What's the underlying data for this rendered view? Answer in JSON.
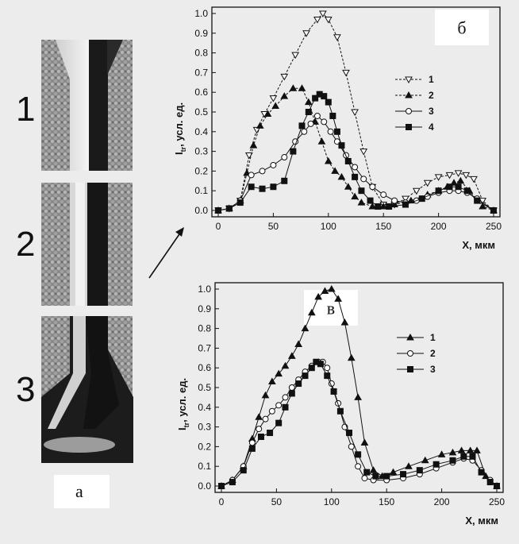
{
  "figure": {
    "left_panel": {
      "rows": [
        "1",
        "2",
        "3"
      ],
      "letter": "а"
    }
  },
  "chart_data": [
    {
      "type": "line",
      "panel_letter": "б",
      "xlabel": "X, мкм",
      "ylabel_main": "I",
      "ylabel_sub": "tr",
      "ylabel_rest": ", усл. ед.",
      "xlim": [
        0,
        250
      ],
      "ylim": [
        0,
        1.0
      ],
      "xticks": [
        "0",
        "50",
        "100",
        "150",
        "200",
        "250"
      ],
      "yticks": [
        "0.0",
        "0.1",
        "0.2",
        "0.3",
        "0.4",
        "0.5",
        "0.6",
        "0.7",
        "0.8",
        "0.9",
        "1.0"
      ],
      "legend_position": "right",
      "series": [
        {
          "name": "1",
          "marker": "triangle-down-open",
          "dash": "dashed",
          "x": [
            0,
            10,
            20,
            28,
            35,
            42,
            50,
            60,
            70,
            80,
            90,
            95,
            100,
            108,
            116,
            124,
            132,
            140,
            150,
            160,
            170,
            180,
            190,
            200,
            210,
            218,
            225,
            232,
            240,
            250
          ],
          "y": [
            0.0,
            0.01,
            0.05,
            0.28,
            0.41,
            0.49,
            0.57,
            0.68,
            0.79,
            0.9,
            0.97,
            1.0,
            0.97,
            0.88,
            0.7,
            0.5,
            0.3,
            0.12,
            0.03,
            0.03,
            0.06,
            0.1,
            0.14,
            0.17,
            0.18,
            0.19,
            0.18,
            0.16,
            0.05,
            0.0
          ]
        },
        {
          "name": "2",
          "marker": "triangle-up-filled",
          "dash": "dashed",
          "x": [
            0,
            10,
            20,
            26,
            32,
            38,
            45,
            52,
            60,
            68,
            76,
            82,
            88,
            94,
            100,
            106,
            112,
            118,
            124,
            130,
            140,
            150,
            160,
            175,
            190,
            200,
            208,
            214,
            220,
            228,
            240,
            250
          ],
          "y": [
            0.0,
            0.01,
            0.05,
            0.19,
            0.33,
            0.43,
            0.49,
            0.53,
            0.58,
            0.62,
            0.62,
            0.55,
            0.45,
            0.35,
            0.25,
            0.2,
            0.17,
            0.12,
            0.07,
            0.04,
            0.02,
            0.02,
            0.03,
            0.05,
            0.08,
            0.1,
            0.12,
            0.14,
            0.15,
            0.1,
            0.02,
            0.0
          ]
        },
        {
          "name": "3",
          "marker": "circle-open",
          "dash": "solid",
          "x": [
            0,
            10,
            20,
            30,
            40,
            50,
            60,
            70,
            78,
            84,
            90,
            96,
            102,
            108,
            116,
            124,
            132,
            140,
            150,
            160,
            170,
            180,
            190,
            200,
            210,
            218,
            226,
            235,
            250
          ],
          "y": [
            0.0,
            0.01,
            0.05,
            0.18,
            0.2,
            0.23,
            0.27,
            0.35,
            0.4,
            0.44,
            0.48,
            0.45,
            0.4,
            0.35,
            0.28,
            0.22,
            0.16,
            0.12,
            0.08,
            0.05,
            0.04,
            0.05,
            0.07,
            0.09,
            0.1,
            0.1,
            0.09,
            0.06,
            0.0
          ]
        },
        {
          "name": "4",
          "marker": "square-filled",
          "dash": "solid",
          "x": [
            0,
            10,
            20,
            30,
            40,
            50,
            60,
            68,
            76,
            82,
            88,
            92,
            96,
            100,
            104,
            108,
            112,
            118,
            124,
            130,
            138,
            145,
            155,
            170,
            185,
            200,
            210,
            218,
            226,
            235,
            250
          ],
          "y": [
            0.0,
            0.01,
            0.04,
            0.12,
            0.11,
            0.12,
            0.15,
            0.3,
            0.43,
            0.5,
            0.57,
            0.59,
            0.58,
            0.55,
            0.48,
            0.4,
            0.33,
            0.25,
            0.17,
            0.1,
            0.05,
            0.02,
            0.02,
            0.03,
            0.06,
            0.1,
            0.12,
            0.12,
            0.1,
            0.05,
            0.0
          ]
        }
      ]
    },
    {
      "type": "line",
      "panel_letter": "в",
      "xlabel": "X, мкм",
      "ylabel_main": "I",
      "ylabel_sub": "tr",
      "ylabel_rest": ", усл. ед.",
      "xlim": [
        0,
        250
      ],
      "ylim": [
        0,
        1.0
      ],
      "xticks": [
        "0",
        "50",
        "100",
        "150",
        "200",
        "250"
      ],
      "yticks": [
        "0.0",
        "0.1",
        "0.2",
        "0.3",
        "0.4",
        "0.5",
        "0.6",
        "0.7",
        "0.8",
        "0.9",
        "1.0"
      ],
      "legend_position": "right",
      "series": [
        {
          "name": "1",
          "marker": "triangle-up-filled",
          "dash": "solid",
          "x": [
            0,
            10,
            20,
            28,
            34,
            40,
            46,
            52,
            58,
            64,
            70,
            76,
            82,
            88,
            94,
            100,
            106,
            112,
            118,
            124,
            130,
            138,
            146,
            156,
            170,
            185,
            200,
            210,
            218,
            226,
            232,
            240,
            250
          ],
          "y": [
            0.0,
            0.03,
            0.1,
            0.24,
            0.35,
            0.46,
            0.53,
            0.57,
            0.61,
            0.66,
            0.72,
            0.8,
            0.88,
            0.96,
            0.99,
            1.0,
            0.95,
            0.83,
            0.65,
            0.45,
            0.22,
            0.08,
            0.05,
            0.07,
            0.1,
            0.13,
            0.16,
            0.17,
            0.18,
            0.18,
            0.18,
            0.05,
            0.0
          ]
        },
        {
          "name": "2",
          "marker": "circle-open",
          "dash": "solid",
          "x": [
            0,
            10,
            20,
            28,
            34,
            40,
            46,
            52,
            58,
            64,
            70,
            76,
            82,
            88,
            92,
            96,
            100,
            106,
            112,
            118,
            124,
            130,
            138,
            150,
            165,
            180,
            195,
            210,
            220,
            228,
            236,
            244,
            250
          ],
          "y": [
            0.0,
            0.03,
            0.1,
            0.22,
            0.29,
            0.34,
            0.38,
            0.41,
            0.45,
            0.5,
            0.54,
            0.58,
            0.61,
            0.63,
            0.63,
            0.6,
            0.52,
            0.42,
            0.3,
            0.2,
            0.1,
            0.04,
            0.03,
            0.03,
            0.04,
            0.06,
            0.09,
            0.12,
            0.14,
            0.13,
            0.08,
            0.03,
            0.0
          ]
        },
        {
          "name": "3",
          "marker": "square-filled",
          "dash": "solid",
          "x": [
            0,
            10,
            20,
            28,
            36,
            44,
            52,
            58,
            64,
            70,
            76,
            82,
            86,
            90,
            96,
            102,
            108,
            116,
            124,
            132,
            140,
            150,
            165,
            180,
            195,
            210,
            220,
            228,
            236,
            244,
            250
          ],
          "y": [
            0.0,
            0.02,
            0.08,
            0.19,
            0.25,
            0.27,
            0.32,
            0.4,
            0.47,
            0.52,
            0.56,
            0.6,
            0.63,
            0.62,
            0.56,
            0.48,
            0.38,
            0.27,
            0.16,
            0.07,
            0.05,
            0.05,
            0.06,
            0.08,
            0.11,
            0.13,
            0.15,
            0.15,
            0.07,
            0.02,
            0.0
          ]
        }
      ]
    }
  ]
}
